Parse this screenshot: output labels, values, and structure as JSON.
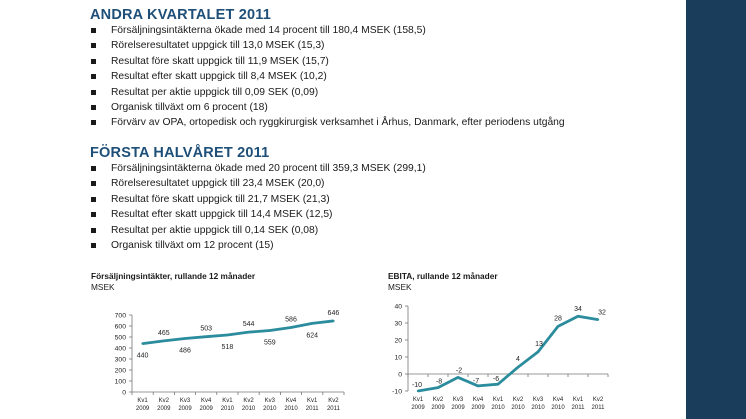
{
  "q2": {
    "title": "ANDRA KVARTALET 2011",
    "bullets": [
      "Försäljningsintäkterna ökade med 14 procent till 180,4 MSEK (158,5)",
      "Rörelseresultatet uppgick till 13,0 MSEK (15,3)",
      "Resultat före skatt uppgick till 11,9 MSEK (15,7)",
      "Resultat efter skatt uppgick till 8,4 MSEK (10,2)",
      "Resultat per aktie uppgick till 0,09 SEK (0,09)",
      "Organisk tillväxt om 6 procent (18)",
      "Förvärv av OPA, ortopedisk och ryggkirurgisk verksamhet i Århus, Danmark, efter periodens utgång"
    ]
  },
  "h1": {
    "title": "FÖRSTA HALVÅRET 2011",
    "bullets": [
      "Försäljningsintäkterna ökade med 20 procent till 359,3 MSEK (299,1)",
      "Rörelseresultatet uppgick till 23,4 MSEK (20,0)",
      "Resultat före skatt uppgick till 21,7 MSEK (21,3)",
      "Resultat efter skatt uppgick till 14,4 MSEK (12,5)",
      "Resultat per aktie uppgick till 0,14 SEK (0,08)",
      "Organisk tillväxt om 12 procent (15)"
    ]
  },
  "chart_data": [
    {
      "type": "line",
      "title": "Försäljningsintäkter, rullande 12 månader",
      "ylabel": "MSEK",
      "categories": [
        [
          "Kv1",
          "2009"
        ],
        [
          "Kv2",
          "2009"
        ],
        [
          "Kv3",
          "2009"
        ],
        [
          "Kv4",
          "2009"
        ],
        [
          "Kv1",
          "2010"
        ],
        [
          "Kv2",
          "2010"
        ],
        [
          "Kv3",
          "2010"
        ],
        [
          "Kv4",
          "2010"
        ],
        [
          "Kv1",
          "2011"
        ],
        [
          "Kv2",
          "2011"
        ]
      ],
      "values": [
        440,
        465,
        486,
        503,
        518,
        544,
        559,
        586,
        624,
        646
      ],
      "data_labels": [
        "440",
        "465",
        "486",
        "503",
        "518",
        "544",
        "559",
        "586",
        "624",
        "646"
      ],
      "ylim": [
        0,
        700
      ],
      "yticks": [
        0,
        100,
        200,
        300,
        400,
        500,
        600,
        700
      ],
      "grid": false,
      "color": "#2a8c9c"
    },
    {
      "type": "line",
      "title": "EBITA, rullande 12 månader",
      "ylabel": "MSEK",
      "categories": [
        [
          "Kv1",
          "2009"
        ],
        [
          "Kv2",
          "2009"
        ],
        [
          "Kv3",
          "2009"
        ],
        [
          "Kv4",
          "2009"
        ],
        [
          "Kv1",
          "2010"
        ],
        [
          "Kv2",
          "2010"
        ],
        [
          "Kv3",
          "2010"
        ],
        [
          "Kv4",
          "2010"
        ],
        [
          "Kv1",
          "2011"
        ],
        [
          "Kv2",
          "2011"
        ]
      ],
      "values": [
        -10,
        -8,
        -2,
        -7,
        -6,
        4,
        13,
        28,
        34,
        32
      ],
      "data_labels": [
        "-10",
        "-8",
        "-2",
        "-7",
        "-6",
        "4",
        "13",
        "28",
        "34",
        "32"
      ],
      "ylim": [
        -10,
        40
      ],
      "yticks": [
        -10,
        0,
        10,
        20,
        30,
        40
      ],
      "grid": false,
      "color": "#2a8c9c"
    }
  ]
}
